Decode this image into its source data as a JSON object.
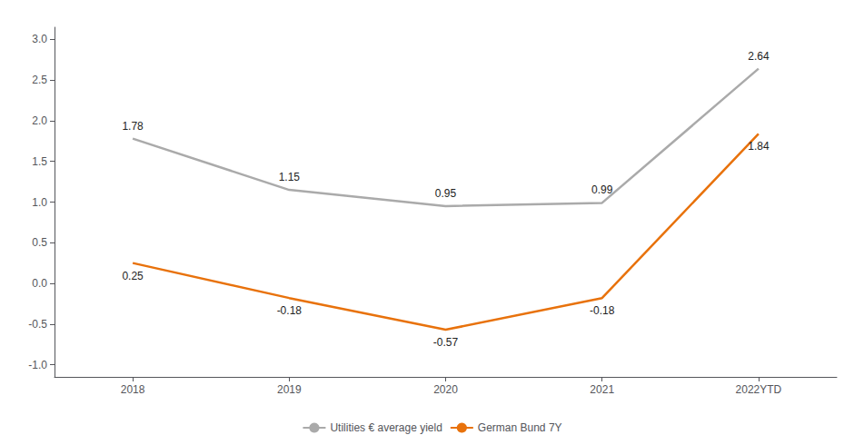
{
  "chart_data": {
    "type": "line",
    "categories": [
      "2018",
      "2019",
      "2020",
      "2021",
      "2022YTD"
    ],
    "series": [
      {
        "name": "Utilities € average yield",
        "color": "#aaaaaa",
        "values": [
          1.78,
          1.15,
          0.95,
          0.99,
          2.64
        ]
      },
      {
        "name": "German Bund 7Y",
        "color": "#E8720C",
        "values": [
          0.25,
          -0.18,
          -0.57,
          -0.18,
          1.84
        ]
      }
    ],
    "ylim": [
      -1.15,
      3.15
    ],
    "yticks": [
      {
        "value": -1.0,
        "label": "-1.0"
      },
      -0.5,
      {
        "value": 0.0,
        "label": "0.0"
      },
      0.5,
      {
        "value": 1.0,
        "label": "1.0"
      },
      1.5,
      {
        "value": 2.0,
        "label": "2.0"
      },
      2.5,
      {
        "value": 3.0,
        "label": "3.0"
      }
    ],
    "grid": false,
    "legend": "bottom",
    "data_labels": true
  }
}
